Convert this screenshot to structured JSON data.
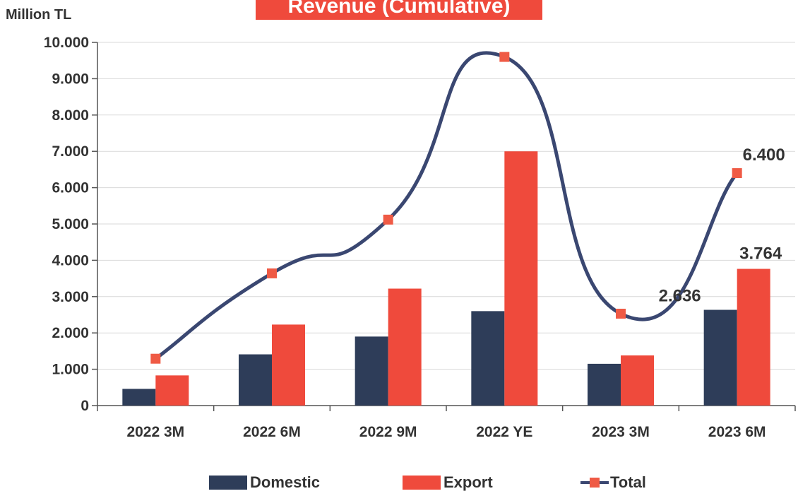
{
  "colors": {
    "domestic": "#2e3d59",
    "export": "#ef4a3c",
    "total_line": "#3a4771",
    "total_marker": "#ef5a45",
    "text": "#333333",
    "grid": "#d9d9d9"
  },
  "chart_data": {
    "type": "bar",
    "title": "Revenue (Cumulative)",
    "ylabel": "Million TL",
    "xlabel": "",
    "categories": [
      "2022 3M",
      "2022 6M",
      "2022 9M",
      "2022 YE",
      "2023 3M",
      "2023 6M"
    ],
    "ylim": [
      0,
      10000
    ],
    "yticks": [
      0,
      1000,
      2000,
      3000,
      4000,
      5000,
      6000,
      7000,
      8000,
      9000,
      10000
    ],
    "ytick_labels": [
      "0",
      "1.000",
      "2.000",
      "3.000",
      "4.000",
      "5.000",
      "6.000",
      "7.000",
      "8.000",
      "9.000",
      "10.000"
    ],
    "grid": true,
    "legend_position": "bottom",
    "series": [
      {
        "name": "Domestic",
        "kind": "bar",
        "values": [
          460,
          1410,
          1900,
          2600,
          1150,
          2636
        ]
      },
      {
        "name": "Export",
        "kind": "bar",
        "values": [
          830,
          2230,
          3220,
          7000,
          1380,
          3764
        ]
      },
      {
        "name": "Total",
        "kind": "line",
        "smooth": true,
        "marker": "square",
        "values": [
          1290,
          3640,
          5120,
          9600,
          2530,
          6400
        ]
      }
    ],
    "data_labels": [
      {
        "series": "Domestic",
        "category": "2023 6M",
        "text": "2.636"
      },
      {
        "series": "Export",
        "category": "2023 6M",
        "text": "3.764"
      },
      {
        "series": "Total",
        "category": "2023 6M",
        "text": "6.400"
      }
    ]
  }
}
